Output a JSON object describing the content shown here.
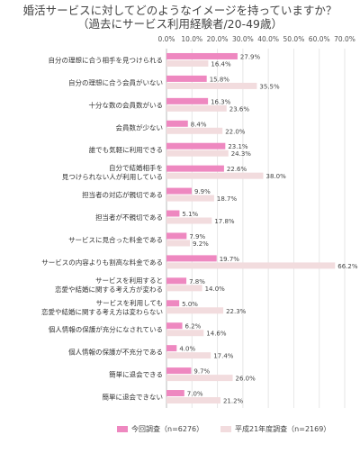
{
  "chart_data": {
    "type": "bar",
    "orientation": "horizontal",
    "title": "婚活サービスに対してどのようなイメージを持っていますか？",
    "subtitle": "（過去にサービス利用経験者/20-49歳）",
    "xlim": [
      0,
      70
    ],
    "x_ticks": [
      "0.0%",
      "10.0%",
      "20.0%",
      "30.0%",
      "40.0%",
      "50.0%",
      "60.0%",
      "70.0%"
    ],
    "grid": true,
    "legend_position": "bottom",
    "categories": [
      [
        "自分の理想に合う相手を見つけられる"
      ],
      [
        "自分の理想に合う会員がいない"
      ],
      [
        "十分な数の会員数がいる"
      ],
      [
        "会員数が少ない"
      ],
      [
        "誰でも気軽に利用できる"
      ],
      [
        "自分で結婚相手を",
        "見つけられない人が利用している"
      ],
      [
        "担当者の対応が親切である"
      ],
      [
        "担当者が不親切である"
      ],
      [
        "サービスに見合った料金である"
      ],
      [
        "サービスの内容よりも割高な料金である"
      ],
      [
        "サービスを利用すると",
        "恋愛や結婚に関する考え方が変わる"
      ],
      [
        "サービスを利用しても",
        "恋愛や結婚に関する考え方は変わらない"
      ],
      [
        "個人情報の保護が充分になされている"
      ],
      [
        "個人情報の保護が不充分である"
      ],
      [
        "簡単に退会できる"
      ],
      [
        "簡単に退会できない"
      ]
    ],
    "series": [
      {
        "name": "今回調査（n=6276）",
        "color": "#ee88c0",
        "values": [
          27.9,
          15.8,
          16.3,
          8.4,
          23.1,
          22.6,
          9.9,
          5.1,
          7.9,
          19.7,
          7.8,
          5.0,
          6.2,
          4.0,
          9.7,
          7.0
        ],
        "labels": [
          "27.9%",
          "15.8%",
          "16.3%",
          "8.4%",
          "23.1%",
          "22.6%",
          "9.9%",
          "5.1%",
          "7.9%",
          "19.7%",
          "7.8%",
          "5.0%",
          "6.2%",
          "4.0%",
          "9.7%",
          "7.0%"
        ]
      },
      {
        "name": "平成21年度調査（n=2169）",
        "color": "#f2dcde",
        "values": [
          16.4,
          35.5,
          23.6,
          22.0,
          24.3,
          38.0,
          18.7,
          17.8,
          9.2,
          66.2,
          14.0,
          22.3,
          14.6,
          17.4,
          26.0,
          21.2
        ],
        "labels": [
          "16.4%",
          "35.5%",
          "23.6%",
          "22.0%",
          "24.3%",
          "38.0%",
          "18.7%",
          "17.8%",
          "9.2%",
          "66.2%",
          "14.0%",
          "22.3%",
          "14.6%",
          "17.4%",
          "26.0%",
          "21.2%"
        ]
      }
    ]
  }
}
